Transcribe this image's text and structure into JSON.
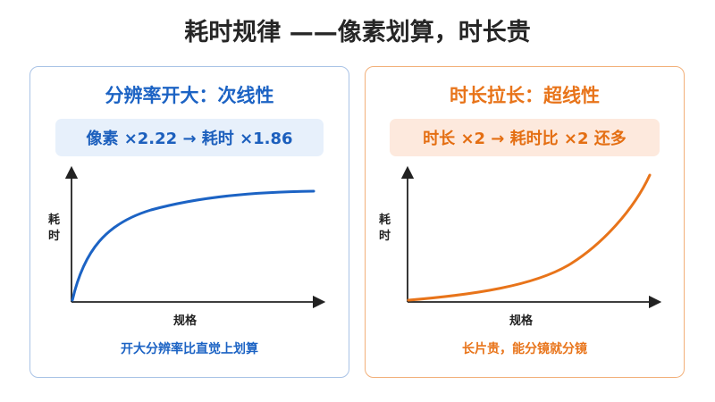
{
  "title": "耗时规律 ——像素划算，时长贵",
  "cards": [
    {
      "title": "分辨率开大：次线性",
      "formula": "像素 ×2.22 → 耗时 ×1.86",
      "y_label": "耗\n时",
      "x_label": "规格",
      "note": "开大分辨率比直觉上划算",
      "color": "#1c63c4",
      "curve": "concave"
    },
    {
      "title": "时长拉长：超线性",
      "formula": "时长 ×2 → 耗时比 ×2 还多",
      "y_label": "耗\n时",
      "x_label": "规格",
      "note": "长片贵，能分镜就分镜",
      "color": "#e8741a",
      "curve": "convex"
    }
  ]
}
